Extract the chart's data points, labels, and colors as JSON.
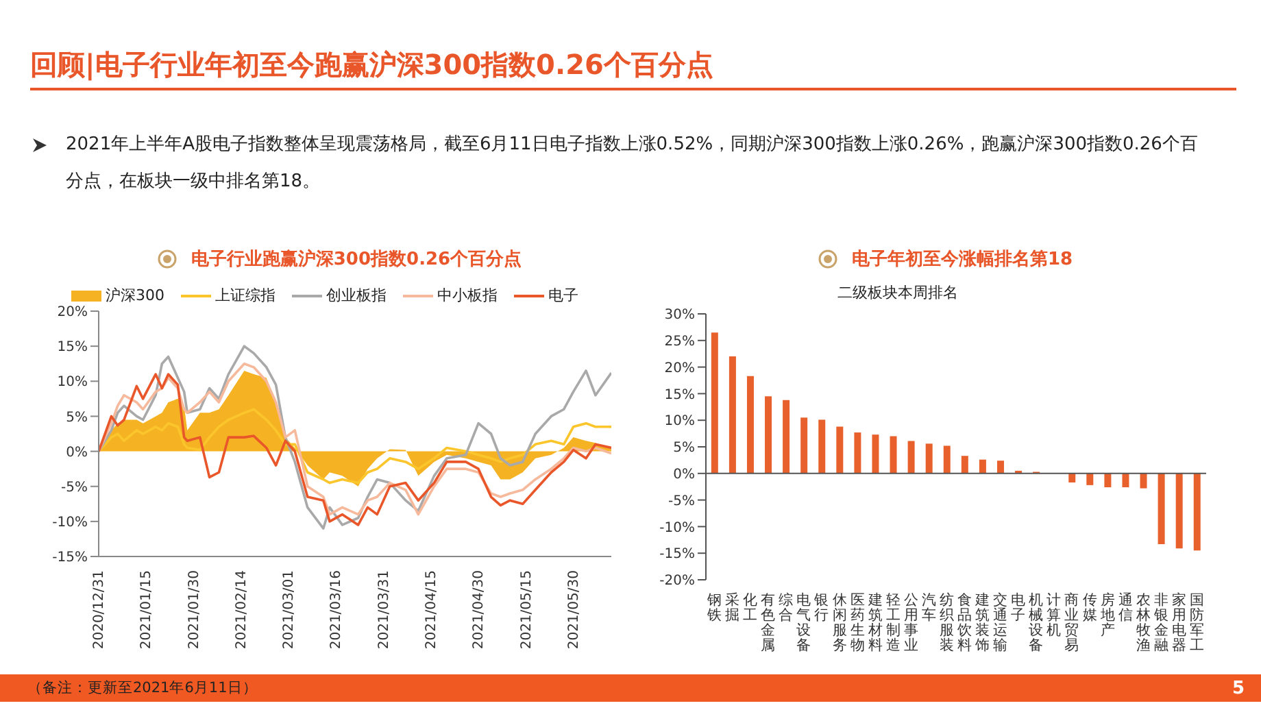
{
  "chart_data": [
    {
      "type": "line",
      "title": "电子行业跑赢沪深300指数0.26个百分点",
      "annotations": [
        "回顾|电子行业年初至今跑赢沪深300指数0.26个百分点",
        "2021年上半年A股电子指数整体呈现震荡格局，截至6月11日电子指数上涨0.52%，同期沪深300指数上涨0.26%，跑赢沪深300指数0.26个百分点，在板块一级中排名第18。",
        "（备注：更新至2021年6月11日）",
        "5"
      ],
      "x": [
        "2020-12-31",
        "2021-01-04",
        "2021-01-06",
        "2021-01-08",
        "2021-01-12",
        "2021-01-14",
        "2021-01-18",
        "2021-01-20",
        "2021-01-22",
        "2021-01-25",
        "2021-01-27",
        "2021-01-28",
        "2021-02-01",
        "2021-02-04",
        "2021-02-07",
        "2021-02-10",
        "2021-02-15",
        "2021-02-18",
        "2021-02-22",
        "2021-02-25",
        "2021-02-28",
        "2021-03-03",
        "2021-03-07",
        "2021-03-12",
        "2021-03-14",
        "2021-03-18",
        "2021-03-23",
        "2021-03-26",
        "2021-03-29",
        "2021-04-02",
        "2021-04-07",
        "2021-04-11",
        "2021-04-16",
        "2021-04-20",
        "2021-04-26",
        "2021-04-30",
        "2021-05-04",
        "2021-05-07",
        "2021-05-10",
        "2021-05-14",
        "2021-05-18",
        "2021-05-23",
        "2021-05-27",
        "2021-05-30",
        "2021-06-03",
        "2021-06-06",
        "2021-06-11"
      ],
      "series": [
        {
          "name": "沪深300",
          "type": "area",
          "color": "#f5b324",
          "values": [
            0,
            3.0,
            4.0,
            4.5,
            4.5,
            4.0,
            5.0,
            5.5,
            7.0,
            7.5,
            6.5,
            3.0,
            5.5,
            5.5,
            6.0,
            8.0,
            11.5,
            11.0,
            10.5,
            7.0,
            2.0,
            0.5,
            -2.0,
            -4.0,
            -3.0,
            -3.5,
            -5.0,
            -2.5,
            -1.0,
            0.3,
            0.2,
            -3.5,
            -1.5,
            -0.5,
            -1.0,
            -1.5,
            -2.0,
            -4.0,
            -4.0,
            -3.0,
            -1.0,
            -0.5,
            0.5,
            2.0,
            1.5,
            1.2,
            0.3
          ]
        },
        {
          "name": "上证综指",
          "type": "line",
          "color": "#fbc52c",
          "values": [
            0,
            2.0,
            2.5,
            1.5,
            3.0,
            2.5,
            3.5,
            3.0,
            4.0,
            3.5,
            1.0,
            0.5,
            0.2,
            2.0,
            3.5,
            4.5,
            5.5,
            6.0,
            4.5,
            3.0,
            1.0,
            1.0,
            -3.0,
            -4.0,
            -4.5,
            -4.0,
            -4.5,
            -3.0,
            -2.5,
            -1.0,
            -1.5,
            -2.5,
            -1.0,
            0.5,
            0.0,
            -0.5,
            -1.0,
            -1.5,
            -1.0,
            -0.5,
            1.0,
            1.5,
            1.0,
            3.5,
            4.0,
            3.5,
            3.5
          ]
        },
        {
          "name": "创业板指",
          "type": "line",
          "color": "#a9a9a9",
          "values": [
            0,
            3.0,
            5.5,
            6.5,
            5.0,
            4.5,
            8.0,
            12.5,
            13.5,
            10.5,
            8.5,
            5.5,
            6.0,
            9.0,
            7.5,
            11.0,
            15.0,
            14.0,
            12.0,
            9.5,
            2.0,
            -1.5,
            -8.0,
            -11.0,
            -8.0,
            -10.5,
            -9.5,
            -6.5,
            -4.0,
            -4.5,
            -7.0,
            -8.5,
            -3.5,
            -1.0,
            -0.5,
            4.0,
            2.5,
            -1.0,
            -2.0,
            -1.5,
            2.5,
            5.0,
            6.0,
            8.5,
            11.5,
            8.0,
            11.2
          ]
        },
        {
          "name": "中小板指",
          "type": "line",
          "color": "#f6b99b",
          "values": [
            0,
            4.0,
            6.5,
            8.0,
            7.0,
            6.0,
            8.5,
            9.0,
            10.5,
            9.0,
            6.0,
            5.5,
            7.0,
            8.5,
            7.0,
            10.0,
            12.5,
            12.0,
            10.0,
            7.0,
            2.0,
            3.0,
            -5.0,
            -6.5,
            -9.0,
            -8.0,
            -9.0,
            -7.0,
            -6.5,
            -4.5,
            -5.5,
            -9.0,
            -5.0,
            -2.5,
            -2.5,
            -3.0,
            -6.0,
            -6.5,
            -6.0,
            -5.5,
            -4.0,
            -2.5,
            -1.0,
            0.5,
            0.0,
            0.5,
            -0.3
          ]
        },
        {
          "name": "电子",
          "type": "line",
          "color": "#e8562a",
          "values": [
            0,
            5.0,
            3.7,
            4.5,
            9.3,
            7.5,
            11.0,
            9.0,
            11.0,
            9.5,
            2.0,
            1.5,
            2.0,
            -3.7,
            -3.0,
            2.0,
            2.0,
            2.2,
            0.5,
            -2.0,
            1.5,
            0,
            -6.5,
            -7.0,
            -10.0,
            -9.0,
            -10.5,
            -8.0,
            -9.0,
            -5.0,
            -4.5,
            -7.0,
            -4.5,
            -1.5,
            -1.5,
            -2.5,
            -6.5,
            -7.7,
            -7.0,
            -7.5,
            -5.5,
            -3.0,
            -1.5,
            0.2,
            -1.0,
            1.0,
            0.5
          ]
        }
      ],
      "xlim": [
        "2020-12-31",
        "2021-06-11"
      ],
      "xticks": [
        {
          "value": "2020-12-31",
          "label": "2020/12/31"
        },
        {
          "value": "2021-01-15",
          "label": "2021/01/15"
        },
        {
          "value": "2021-01-30",
          "label": "2021/01/30"
        },
        {
          "value": "2021-02-14",
          "label": "2021/02/14"
        },
        {
          "value": "2021-03-01",
          "label": "2021/03/01"
        },
        {
          "value": "2021-03-16",
          "label": "2021/03/16"
        },
        {
          "value": "2021-03-31",
          "label": "2021/03/31"
        },
        {
          "value": "2021-04-15",
          "label": "2021/04/15"
        },
        {
          "value": "2021-04-30",
          "label": "2021/04/30"
        },
        {
          "value": "2021-05-15",
          "label": "2021/05/15"
        },
        {
          "value": "2021-05-30",
          "label": "2021/05/30"
        }
      ],
      "ylim": [
        -15,
        20
      ],
      "yticks": [
        {
          "value": -15,
          "label": "-15%"
        },
        {
          "value": -10,
          "label": "-10%"
        },
        {
          "value": -5,
          "label": "-5%"
        },
        {
          "value": 0,
          "label": "0%"
        },
        {
          "value": 5,
          "label": "5%"
        },
        {
          "value": 10,
          "label": "10%"
        },
        {
          "value": 15,
          "label": "15%"
        },
        {
          "value": 20,
          "label": "20%"
        }
      ],
      "legend": "top"
    },
    {
      "type": "bar",
      "title": "电子年初至今涨幅排名第18",
      "subtitle": "二级板块本周排名",
      "categories": [
        "钢铁",
        "采掘",
        "化工",
        "有色金属",
        "综合",
        "电气设备",
        "银行",
        "休闲服务",
        "医药生物",
        "建筑材料",
        "轻工制造",
        "公用事业",
        "汽车",
        "纺织服装",
        "食品饮料",
        "建筑装饰",
        "交通运输",
        "电子",
        "机械设备",
        "计算机",
        "商业贸易",
        "传媒",
        "房地产",
        "通信",
        "农林牧渔",
        "非银金融",
        "家用电器",
        "国防军工"
      ],
      "values": [
        26.5,
        22.0,
        18.3,
        14.5,
        13.8,
        10.5,
        10.1,
        8.8,
        7.7,
        7.3,
        7.0,
        6.1,
        5.6,
        5.2,
        3.3,
        2.6,
        2.4,
        0.5,
        0.3,
        0.1,
        -1.7,
        -2.2,
        -2.6,
        -2.6,
        -2.8,
        -13.3,
        -14.1,
        -14.5
      ],
      "color": "#e8602c",
      "ylim": [
        -20,
        30
      ],
      "yticks": [
        {
          "value": -20,
          "label": "-20%"
        },
        {
          "value": -15,
          "label": "-15%"
        },
        {
          "value": -10,
          "label": "-10%"
        },
        {
          "value": -5,
          "label": "-5%"
        },
        {
          "value": 0,
          "label": "0%"
        },
        {
          "value": 5,
          "label": "5%"
        },
        {
          "value": 10,
          "label": "10%"
        },
        {
          "value": 15,
          "label": "15%"
        },
        {
          "value": 20,
          "label": "20%"
        },
        {
          "value": 25,
          "label": "25%"
        },
        {
          "value": 30,
          "label": "30%"
        }
      ]
    }
  ]
}
